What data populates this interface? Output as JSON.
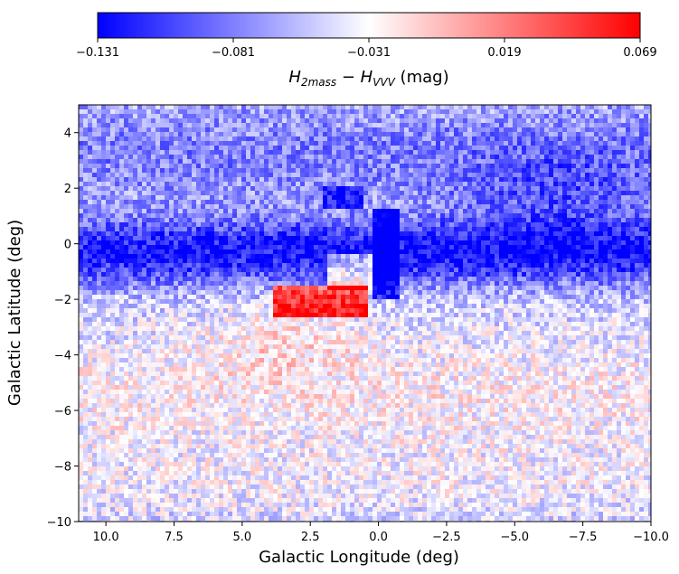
{
  "chart_data": {
    "type": "heatmap",
    "colorbar": {
      "ticks": [
        "−0.131",
        "−0.081",
        "−0.031",
        "0.019",
        "0.069"
      ],
      "tick_values": [
        -0.131,
        -0.081,
        -0.031,
        0.019,
        0.069
      ],
      "range": [
        -0.131,
        0.069
      ],
      "colormap": "bwr",
      "label_main": "H",
      "label_sub1": "2mass",
      "label_mid": " − H",
      "label_sub2": "VVV",
      "label_unit": " (mag)",
      "placement": "top"
    },
    "xlabel": "Galactic Longitude (deg)",
    "ylabel": "Galactic Latitude (deg)",
    "xlim": [
      11,
      -10
    ],
    "ylim": [
      -10,
      5
    ],
    "x_ticks": [
      "10.0",
      "7.5",
      "5.0",
      "2.5",
      "0.0",
      "−2.5",
      "−5.0",
      "−7.5",
      "−10.0"
    ],
    "x_tick_values": [
      10,
      7.5,
      5,
      2.5,
      0,
      -2.5,
      -5,
      -7.5,
      -10
    ],
    "y_ticks": [
      "4",
      "2",
      "0",
      "−2",
      "−4",
      "−6",
      "−8",
      "−10"
    ],
    "y_tick_values": [
      4,
      2,
      0,
      -2,
      -4,
      -6,
      -8,
      -10
    ],
    "grid": false,
    "colors": {
      "min": "#0000ff",
      "mid": "#ffffff",
      "max": "#ff0000"
    }
  }
}
